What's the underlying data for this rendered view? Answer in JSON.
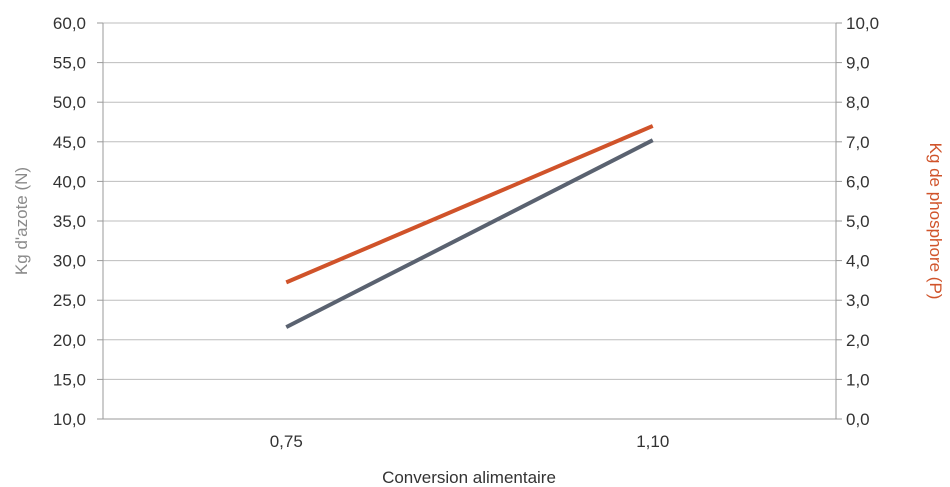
{
  "chart_data": {
    "type": "line",
    "categories": [
      "0,75",
      "1,10"
    ],
    "series": [
      {
        "axis": "left",
        "color": "#5a6270",
        "values": [
          21.6,
          45.2
        ]
      },
      {
        "axis": "right",
        "color": "#d0532a",
        "values": [
          3.45,
          7.4
        ]
      }
    ],
    "xlabel": "Conversion alimentaire",
    "ylabel": "Kg d'azote (N)",
    "y2label": "Kg de phosphore (P)",
    "ylim": [
      10,
      60
    ],
    "y2lim": [
      0,
      10
    ],
    "yticks": [
      "10,0",
      "15,0",
      "20,0",
      "25,0",
      "30,0",
      "35,0",
      "40,0",
      "45,0",
      "50,0",
      "55,0",
      "60,0"
    ],
    "y2ticks": [
      "0,0",
      "1,0",
      "2,0",
      "3,0",
      "4,0",
      "5,0",
      "6,0",
      "7,0",
      "8,0",
      "9,0",
      "10,0"
    ],
    "grid": true,
    "legend": "none"
  }
}
